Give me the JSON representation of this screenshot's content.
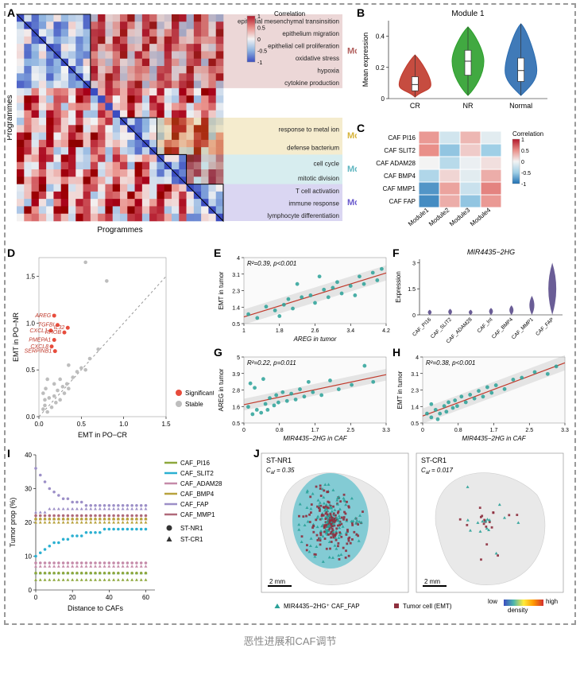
{
  "caption": "恶性进展和CAF调节",
  "panelA": {
    "label": "A",
    "xaxis": "Programmes",
    "yaxis": "Programmes",
    "n": 28,
    "colorbar": {
      "title": "Correlation",
      "min": -1,
      "max": 1,
      "ticks": [
        1,
        0.5,
        0,
        -0.5,
        -1
      ],
      "grad": [
        "#3b4cc0",
        "#8fb4e0",
        "#f3f3f3",
        "#e98f89",
        "#b2182b"
      ]
    },
    "modules": [
      {
        "name": "Module 1",
        "color": "#b2605e",
        "rows": [
          0,
          10
        ],
        "items": [
          "epithelial mesenchymal transinsition",
          "epithelium migration",
          "epithelial cell proliferation",
          "oxidative stress",
          "hypoxia",
          "cytokine production"
        ]
      },
      {
        "name": "Module 2",
        "color": "#d7b43b",
        "rows": [
          14,
          19
        ],
        "items": [
          "response to metal ion",
          "defense bacterium"
        ]
      },
      {
        "name": "Module 3",
        "color": "#5fb6c0",
        "rows": [
          19,
          23
        ],
        "items": [
          "cell cycle",
          "mitotic division"
        ]
      },
      {
        "name": "Module 4",
        "color": "#6a5acd",
        "rows": [
          23,
          28
        ],
        "items": [
          "T cell activation",
          "immune response",
          "lymphocyte differentiation"
        ]
      }
    ]
  },
  "panelB": {
    "label": "B",
    "title": "Module 1",
    "ylabel": "Mean expression",
    "yticks": [
      0,
      0.2,
      0.4
    ],
    "categories": [
      "CR",
      "NR",
      "Normal"
    ],
    "colors": [
      "#c0392b",
      "#2ca02c",
      "#2b6cb0"
    ],
    "medians": [
      0.09,
      0.24,
      0.18
    ],
    "q1": [
      0.05,
      0.15,
      0.11
    ],
    "q3": [
      0.14,
      0.31,
      0.26
    ],
    "whisker_lo": [
      0.01,
      0.02,
      0.02
    ],
    "whisker_hi": [
      0.28,
      0.46,
      0.48
    ]
  },
  "panelC": {
    "label": "C",
    "rows": [
      "CAF PI16",
      "CAF SLIT2",
      "CAF ADAM28",
      "CAF BMP4",
      "CAF MMP1",
      "CAF FAP"
    ],
    "cols": [
      "Module1",
      "Module2",
      "Module3",
      "Module4"
    ],
    "colorbar": {
      "title": "Correlation",
      "ticks": [
        1,
        0.5,
        0,
        -0.5,
        -1
      ],
      "grad": [
        "#1f6fb2",
        "#9fcfe6",
        "#f3f3f3",
        "#e98f89",
        "#b2182b"
      ]
    },
    "values": [
      [
        -0.45,
        0.2,
        -0.3,
        0.1
      ],
      [
        -0.5,
        0.55,
        -0.2,
        0.5
      ],
      [
        0.0,
        0.35,
        0.05,
        -0.1
      ],
      [
        0.4,
        -0.15,
        0.1,
        -0.35
      ],
      [
        0.8,
        -0.4,
        0.25,
        -0.55
      ],
      [
        0.85,
        -0.35,
        0.55,
        -0.45
      ]
    ]
  },
  "panelD": {
    "label": "D",
    "xlabel": "EMT in PO−CR",
    "ylabel": "EMT in PO−NR",
    "xlim": [
      0,
      1.5
    ],
    "ylim": [
      0,
      1.7
    ],
    "ticks_x": [
      0.0,
      0.5,
      1.0,
      1.5
    ],
    "ticks_y": [
      0.0,
      0.5,
      1.0,
      1.5
    ],
    "legend": [
      {
        "label": "Significant",
        "color": "#e74c3c"
      },
      {
        "label": "Stable",
        "color": "#bdbdbd"
      }
    ],
    "sig_labels": [
      "AREG",
      "TGFBI",
      "CXCL1",
      "RHOB",
      "PMEPA1",
      "IL32",
      "CXCL8",
      "SERPINB1"
    ],
    "points_sig": [
      [
        0.18,
        1.08
      ],
      [
        0.22,
        0.98
      ],
      [
        0.14,
        0.92
      ],
      [
        0.3,
        0.9
      ],
      [
        0.18,
        0.82
      ],
      [
        0.34,
        0.95
      ],
      [
        0.15,
        0.75
      ],
      [
        0.19,
        0.7
      ]
    ],
    "points_stable": [
      [
        0.05,
        0.08
      ],
      [
        0.07,
        0.12
      ],
      [
        0.1,
        0.05
      ],
      [
        0.12,
        0.2
      ],
      [
        0.15,
        0.1
      ],
      [
        0.18,
        0.22
      ],
      [
        0.2,
        0.15
      ],
      [
        0.22,
        0.28
      ],
      [
        0.25,
        0.18
      ],
      [
        0.28,
        0.32
      ],
      [
        0.3,
        0.25
      ],
      [
        0.33,
        0.35
      ],
      [
        0.35,
        0.3
      ],
      [
        0.4,
        0.42
      ],
      [
        0.45,
        0.48
      ],
      [
        0.5,
        0.52
      ],
      [
        0.55,
        0.5
      ],
      [
        0.6,
        0.62
      ],
      [
        0.7,
        0.72
      ],
      [
        0.8,
        1.45
      ],
      [
        0.55,
        1.65
      ],
      [
        0.1,
        0.4
      ],
      [
        0.08,
        0.3
      ],
      [
        0.05,
        0.25
      ],
      [
        0.18,
        0.35
      ],
      [
        0.25,
        0.4
      ],
      [
        0.35,
        0.55
      ],
      [
        0.07,
        0.18
      ]
    ]
  },
  "panelE": {
    "label": "E",
    "stat": "R²=0.39, p<0.001",
    "xlabel": "AREG in tumor",
    "ylabel": "EMT in tumor",
    "xlim": [
      1,
      4.2
    ],
    "ylim": [
      0.5,
      4.0
    ],
    "point_color": "#2aa198",
    "line_color": "#c0392b",
    "points": [
      [
        1.1,
        1.0
      ],
      [
        1.3,
        0.8
      ],
      [
        1.5,
        1.4
      ],
      [
        1.7,
        1.2
      ],
      [
        1.9,
        1.5
      ],
      [
        2.0,
        1.8
      ],
      [
        2.1,
        1.3
      ],
      [
        2.3,
        1.9
      ],
      [
        2.5,
        2.0
      ],
      [
        2.6,
        1.6
      ],
      [
        2.8,
        2.3
      ],
      [
        2.9,
        1.9
      ],
      [
        3.0,
        2.4
      ],
      [
        3.1,
        2.7
      ],
      [
        3.2,
        2.1
      ],
      [
        3.4,
        2.5
      ],
      [
        3.5,
        2.0
      ],
      [
        3.6,
        3.0
      ],
      [
        3.7,
        2.6
      ],
      [
        3.9,
        3.2
      ],
      [
        4.0,
        2.8
      ],
      [
        4.1,
        3.4
      ],
      [
        2.2,
        2.6
      ],
      [
        2.7,
        3.0
      ],
      [
        1.8,
        0.9
      ]
    ]
  },
  "panelF": {
    "label": "F",
    "title": "MIR4435−2HG",
    "ylabel": "Expression",
    "yticks": [
      0,
      1.5,
      3
    ],
    "cats": [
      "CAF_PI16",
      "CAF_SLIT2",
      "CAF_ADAM28",
      "CAF_Int",
      "CAF_BMP4",
      "CAF_MMP1",
      "CAF_FAP"
    ],
    "color": "#5a4b8b",
    "heights": [
      0.3,
      0.35,
      0.3,
      0.4,
      0.55,
      1.1,
      3.0
    ]
  },
  "panelG": {
    "label": "G",
    "stat": "R²=0.22, p=0.011",
    "xlabel": "MIR4435−2HG in CAF",
    "ylabel": "AREG in tumor",
    "xlim": [
      0,
      3.3
    ],
    "ylim": [
      0.5,
      5
    ],
    "point_color": "#2aa198",
    "line_color": "#c0392b",
    "points": [
      [
        0.1,
        1.6
      ],
      [
        0.2,
        1.1
      ],
      [
        0.3,
        1.4
      ],
      [
        0.4,
        1.2
      ],
      [
        0.5,
        1.8
      ],
      [
        0.55,
        1.4
      ],
      [
        0.6,
        2.2
      ],
      [
        0.7,
        1.7
      ],
      [
        0.75,
        2.4
      ],
      [
        0.8,
        1.9
      ],
      [
        0.9,
        2.6
      ],
      [
        1.0,
        2.0
      ],
      [
        1.1,
        2.5
      ],
      [
        1.2,
        2.1
      ],
      [
        1.3,
        2.8
      ],
      [
        1.4,
        2.3
      ],
      [
        1.5,
        3.3
      ],
      [
        1.6,
        2.6
      ],
      [
        1.8,
        2.4
      ],
      [
        2.0,
        3.4
      ],
      [
        2.2,
        2.8
      ],
      [
        2.5,
        3.1
      ],
      [
        2.8,
        4.4
      ],
      [
        3.0,
        3.3
      ],
      [
        0.15,
        3.2
      ],
      [
        0.25,
        2.9
      ],
      [
        0.45,
        3.5
      ]
    ]
  },
  "panelH": {
    "label": "H",
    "stat": "R²=0.38, p<0.001",
    "xlabel": "MIR4435−2HG in CAF",
    "ylabel": "EMT in tumor",
    "xlim": [
      0,
      3.3
    ],
    "ylim": [
      0.5,
      4
    ],
    "point_color": "#2aa198",
    "line_color": "#c0392b",
    "points": [
      [
        0.1,
        1.0
      ],
      [
        0.2,
        0.8
      ],
      [
        0.3,
        1.2
      ],
      [
        0.4,
        1.0
      ],
      [
        0.5,
        1.4
      ],
      [
        0.55,
        1.1
      ],
      [
        0.6,
        1.6
      ],
      [
        0.7,
        1.3
      ],
      [
        0.75,
        1.7
      ],
      [
        0.8,
        1.4
      ],
      [
        0.9,
        1.9
      ],
      [
        1.0,
        1.6
      ],
      [
        1.1,
        2.0
      ],
      [
        1.2,
        1.8
      ],
      [
        1.3,
        2.2
      ],
      [
        1.4,
        1.9
      ],
      [
        1.5,
        2.4
      ],
      [
        1.6,
        2.1
      ],
      [
        1.7,
        2.5
      ],
      [
        1.9,
        2.3
      ],
      [
        2.1,
        2.8
      ],
      [
        2.3,
        2.9
      ],
      [
        2.6,
        3.2
      ],
      [
        2.9,
        3.1
      ],
      [
        3.1,
        3.5
      ],
      [
        0.2,
        1.5
      ],
      [
        0.35,
        0.7
      ]
    ]
  },
  "panelI": {
    "label": "I",
    "xlabel": "Distance to CAFs",
    "ylabel": "Tumor prop (%)",
    "xlim": [
      0,
      65
    ],
    "ylim": [
      0,
      40
    ],
    "xticks": [
      0,
      20,
      40,
      60
    ],
    "yticks": [
      0,
      10,
      20,
      30,
      40
    ],
    "legend": [
      {
        "name": "CAF_PI16",
        "color": "#8da73c"
      },
      {
        "name": "CAF_SLIT2",
        "color": "#2bb0d1"
      },
      {
        "name": "CAF_ADAM28",
        "color": "#c58aa9"
      },
      {
        "name": "CAF_BMP4",
        "color": "#b8a23d"
      },
      {
        "name": "CAF_FAP",
        "color": "#9c8fc7"
      },
      {
        "name": "CAF_MMP1",
        "color": "#b06a7a"
      }
    ],
    "shape_legend": [
      {
        "name": "ST-NR1",
        "shape": "circle"
      },
      {
        "name": "ST-CR1",
        "shape": "triangle"
      }
    ],
    "series": {
      "CAF_FAP": {
        "circle": [
          36,
          34,
          32,
          30,
          29,
          28,
          27,
          27,
          26,
          26,
          26,
          25,
          25,
          25,
          25,
          25,
          25,
          25,
          25,
          25,
          25,
          25,
          25,
          25,
          25
        ],
        "triangle": [
          23,
          23,
          23,
          24,
          24,
          24,
          24,
          24,
          24,
          24,
          24,
          24,
          24,
          24,
          24,
          24,
          24,
          24,
          24,
          24,
          24,
          24,
          24,
          24,
          24
        ]
      },
      "CAF_MMP1": {
        "circle": [
          22,
          22,
          22,
          22,
          22,
          22,
          22,
          22,
          22,
          22,
          22,
          22,
          22,
          22,
          22,
          22,
          22,
          22,
          22,
          22,
          22,
          22,
          22,
          22,
          22
        ],
        "triangle": [
          21,
          21,
          21,
          21,
          21,
          21,
          21,
          21,
          21,
          21,
          21,
          21,
          21,
          21,
          21,
          21,
          21,
          21,
          21,
          21,
          21,
          21,
          21,
          21,
          21
        ]
      },
      "CAF_BMP4": {
        "circle": [
          21,
          21,
          21,
          21,
          21,
          21,
          21,
          21,
          21,
          21,
          21,
          21,
          21,
          21,
          21,
          21,
          21,
          21,
          21,
          21,
          21,
          21,
          21,
          21,
          21
        ],
        "triangle": [
          20,
          20,
          20,
          20,
          20,
          20,
          20,
          20,
          20,
          20,
          20,
          20,
          20,
          20,
          20,
          20,
          20,
          20,
          20,
          20,
          20,
          20,
          20,
          20,
          20
        ]
      },
      "CAF_SLIT2": {
        "circle": [
          10,
          11,
          12,
          13,
          14,
          14,
          15,
          15,
          16,
          16,
          16,
          17,
          17,
          17,
          17,
          18,
          18,
          18,
          18,
          18,
          18,
          18,
          18,
          18,
          18
        ],
        "triangle": [
          5,
          5,
          5,
          5,
          5,
          5,
          5,
          5,
          5,
          5,
          5,
          5,
          5,
          5,
          5,
          5,
          5,
          5,
          5,
          5,
          5,
          5,
          5,
          5,
          5
        ]
      },
      "CAF_ADAM28": {
        "circle": [
          8,
          8,
          8,
          8,
          8,
          8,
          8,
          8,
          8,
          8,
          8,
          8,
          8,
          8,
          8,
          8,
          8,
          8,
          8,
          8,
          8,
          8,
          8,
          8,
          8
        ],
        "triangle": [
          7,
          7,
          7,
          7,
          7,
          7,
          7,
          7,
          7,
          7,
          7,
          7,
          7,
          7,
          7,
          7,
          7,
          7,
          7,
          7,
          7,
          7,
          7,
          7,
          7
        ]
      },
      "CAF_PI16": {
        "circle": [
          5,
          5,
          5,
          5,
          5,
          5,
          5,
          5,
          5,
          5,
          5,
          5,
          5,
          5,
          5,
          5,
          5,
          5,
          5,
          5,
          5,
          5,
          5,
          5,
          5
        ],
        "triangle": [
          3,
          3,
          3,
          3,
          3,
          3,
          3,
          3,
          3,
          3,
          3,
          3,
          3,
          3,
          3,
          3,
          3,
          3,
          3,
          3,
          3,
          3,
          3,
          3,
          3
        ]
      }
    }
  },
  "panelJ": {
    "label": "J",
    "left": {
      "title": "ST-NR1",
      "caf": "C_af = 0.35"
    },
    "right": {
      "title": "ST-CR1",
      "caf": "C_af = 0.017"
    },
    "scale": "2 mm",
    "legend_items": [
      {
        "label": "MIR4435−2HG⁺ CAF_FAP",
        "symbol": "triangle",
        "color": "#2aa198"
      },
      {
        "label": "Tumor cell (EMT)",
        "symbol": "square",
        "color": "#8e2f3e"
      }
    ],
    "density_label": "density",
    "density_low": "low",
    "density_high": "high",
    "density_grad": [
      "#3b4cc0",
      "#4db6ac",
      "#ffeb3b",
      "#ff9800",
      "#d32f2f"
    ]
  }
}
